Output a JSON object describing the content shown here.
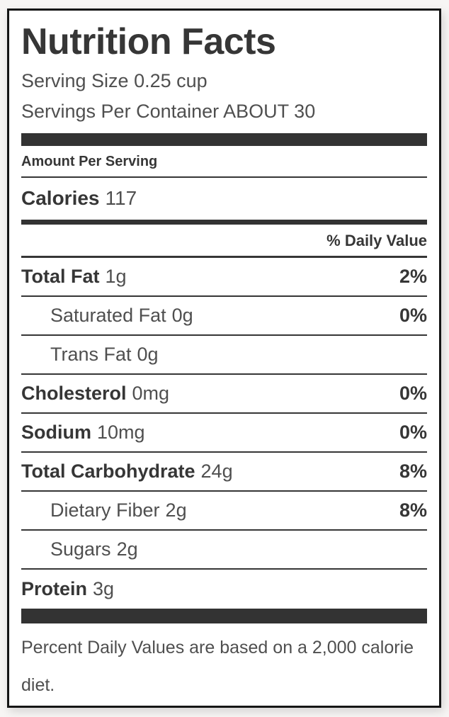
{
  "label": {
    "title": "Nutrition Facts",
    "serving_size": "Serving Size 0.25 cup",
    "servings_per_container": "Servings Per Container ABOUT 30",
    "amount_per_serving": "Amount Per Serving",
    "calories_label": "Calories",
    "calories_value": "117",
    "daily_value_header": "% Daily Value",
    "rows": [
      {
        "name": "Total Fat",
        "amount": "1g",
        "dv": "2%",
        "bold": true,
        "indent": false
      },
      {
        "name": "Saturated Fat",
        "amount": "0g",
        "dv": "0%",
        "bold": false,
        "indent": true
      },
      {
        "name": "Trans Fat",
        "amount": "0g",
        "dv": "",
        "bold": false,
        "indent": true
      },
      {
        "name": "Cholesterol",
        "amount": "0mg",
        "dv": "0%",
        "bold": true,
        "indent": false
      },
      {
        "name": "Sodium",
        "amount": "10mg",
        "dv": "0%",
        "bold": true,
        "indent": false
      },
      {
        "name": "Total Carbohydrate",
        "amount": "24g",
        "dv": "8%",
        "bold": true,
        "indent": false
      },
      {
        "name": "Dietary Fiber",
        "amount": "2g",
        "dv": "8%",
        "bold": false,
        "indent": true
      },
      {
        "name": "Sugars",
        "amount": "2g",
        "dv": "",
        "bold": false,
        "indent": true
      },
      {
        "name": "Protein",
        "amount": "3g",
        "dv": "",
        "bold": true,
        "indent": false
      }
    ],
    "footnote": "Percent Daily Values are based on a 2,000 calorie diet.",
    "colors": {
      "ink": "#363636",
      "text": "#4f4f4f",
      "bar": "#333333",
      "background": "#f7f5f4",
      "label_bg": "#ffffff"
    }
  }
}
